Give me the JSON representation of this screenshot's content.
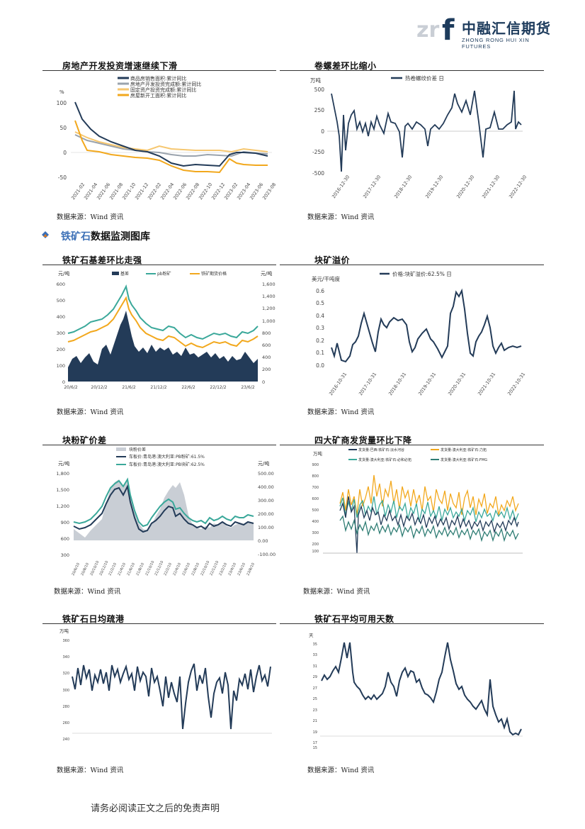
{
  "header": {
    "logo_mark": "zrf",
    "company_cn": "中融汇信期货",
    "company_en": "ZHONG RONG HUI XIN FUTURES"
  },
  "section": {
    "prefix": "铁矿石",
    "suffix": "数据监测图库"
  },
  "source_text": "数据来源：Wind 资讯",
  "footer": "请务必阅读正文之后的免责声明",
  "colors": {
    "navy": "#233b58",
    "teal": "#3aa89a",
    "orange": "#f2a81d",
    "gray": "#9aa3ad",
    "light_gray": "#c9ced5"
  },
  "charts": {
    "c1": {
      "title": "房地产开发投资增速继续下滑",
      "unit": "%",
      "legend": [
        "商品房销售面积:累计同比",
        "房地产开发投资完成额:累计同比",
        "固定资产投资完成额:累计同比",
        "房屋新开工面积:累计同比"
      ],
      "yticks": [
        "100",
        "50",
        "0",
        "-50"
      ],
      "xticks": [
        "2021-02",
        "2021-04",
        "2021-06",
        "2021-08",
        "2021-10",
        "2021-12",
        "2022-02",
        "2022-04",
        "2022-06",
        "2022-08",
        "2022-10",
        "2022-12",
        "2023-02",
        "2023-04",
        "2023-06",
        "2023-08"
      ]
    },
    "c2": {
      "title": "卷螺差环比缩小",
      "unit": "万吨",
      "legend": [
        "热卷螺纹价差 日"
      ],
      "yticks": [
        "500",
        "250",
        "0",
        "-250",
        "-500"
      ],
      "xticks": [
        "2016-12-30",
        "2017-12-30",
        "2018-12-30",
        "2019-12-30",
        "2020-12-30",
        "2021-12-30",
        "2022-12-30"
      ]
    },
    "c3": {
      "title": "铁矿石基差环比走强",
      "unit_left": "元/吨",
      "unit_right": "元/吨",
      "legend": [
        "基差",
        "pb粉矿",
        "铁矿期货价格"
      ],
      "yticks_left": [
        "600",
        "500",
        "400",
        "300",
        "200",
        "100",
        "0"
      ],
      "yticks_right": [
        "1,600",
        "1,400",
        "1,200",
        "1,000",
        "800",
        "600",
        "400",
        "200",
        "0"
      ],
      "xticks": [
        "20/6/2",
        "20/12/2",
        "21/6/2",
        "21/12/2",
        "22/6/2",
        "22/12/2",
        "23/6/2"
      ]
    },
    "c4": {
      "title": "块矿溢价",
      "unit": "美元/干吨度",
      "legend": [
        "价格:块矿溢价:62.5% 日"
      ],
      "yticks": [
        "0.6",
        "0.5",
        "0.4",
        "0.3",
        "0.2",
        "0.1",
        "0.0"
      ],
      "xticks": [
        "2016-10-31",
        "2017-10-31",
        "2018-10-31",
        "2019-10-31",
        "2020-10-31",
        "2021-10-31",
        "2022-10-31"
      ]
    },
    "c5": {
      "title": "块粉矿价差",
      "unit_left": "元/吨",
      "unit_right": "元/吨",
      "legend": [
        "块粉价差",
        "车板价:青岛港:澳大利亚:PB粉矿:61.5%",
        "车板价:青岛港:澳大利亚:PB块矿:62.5%"
      ],
      "yticks_left": [
        "1,800",
        "1,500",
        "1,200",
        "900",
        "600",
        "300"
      ],
      "yticks_right": [
        "500.00",
        "400.00",
        "300.00",
        "200.00",
        "100.00",
        "0.00",
        "-100.00"
      ],
      "xticks": [
        "20/6/10",
        "20/8/10",
        "20/10/10",
        "20/12/10",
        "21/2/10",
        "21/4/10",
        "21/6/10",
        "21/8/10",
        "21/10/10",
        "21/12/10",
        "22/2/10",
        "22/4/10",
        "22/6/10",
        "22/8/10",
        "22/10/10",
        "22/12/10",
        "23/2/10",
        "23/4/10",
        "23/6/10",
        "23/8/10"
      ]
    },
    "c6": {
      "title": "四大矿商发货量环比下降",
      "unit": "万吨",
      "legend": [
        "发货量:巴西:铁矿石:淡水河谷",
        "发货量:澳大利亚:铁矿石:力拓",
        "发货量:澳大利亚:铁矿石:必和必拓",
        "发货量:澳大利亚:铁矿石:FMG"
      ],
      "yticks": [
        "900",
        "800",
        "700",
        "600",
        "500",
        "400",
        "300",
        "200",
        "100"
      ]
    },
    "c7": {
      "title": "铁矿石日均疏港",
      "unit": "万吨",
      "yticks": [
        "360",
        "340",
        "320",
        "300",
        "280",
        "260",
        "240"
      ]
    },
    "c8": {
      "title": "铁矿石平均可用天数",
      "unit": "天",
      "yticks": [
        "35",
        "33",
        "31",
        "29",
        "27",
        "25",
        "23",
        "21",
        "19",
        "17",
        "15"
      ]
    }
  }
}
